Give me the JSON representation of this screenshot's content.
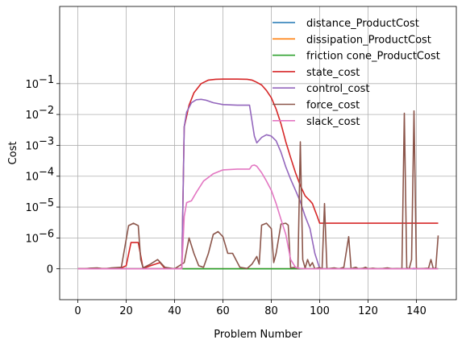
{
  "chart_data": {
    "type": "line",
    "xlabel": "Problem Number",
    "ylabel": "Cost",
    "xlim": [
      -7.5,
      156.5
    ],
    "yscale": "symlog",
    "linthresh": 1e-06,
    "ylim_decades": [
      -1,
      8.5
    ],
    "x_ticks": [
      0,
      20,
      40,
      60,
      80,
      100,
      120,
      140
    ],
    "x_tick_labels": [
      "0",
      "20",
      "40",
      "60",
      "80",
      "100",
      "120",
      "140"
    ],
    "y_ticks": [
      "0",
      "1e-6",
      "1e-5",
      "1e-4",
      "1e-3",
      "1e-2",
      "1e-1"
    ],
    "y_tick_labels": [
      "0",
      "10",
      "10",
      "10",
      "10",
      "10",
      "10"
    ],
    "y_tick_exponents": [
      "",
      "−6",
      "−5",
      "−4",
      "−3",
      "−2",
      "−1"
    ],
    "grid": true,
    "legend_position": "top-right",
    "series": [
      {
        "name": "distance_ProductCost",
        "color": "#1f77b4",
        "points": [
          [
            0,
            0
          ],
          [
            149,
            0
          ]
        ]
      },
      {
        "name": "dissipation_ProductCost",
        "color": "#ff7f0e",
        "points": [
          [
            0,
            0
          ],
          [
            149,
            0
          ]
        ]
      },
      {
        "name": "friction cone_ProductCost",
        "color": "#2ca02c",
        "points": [
          [
            0,
            0
          ],
          [
            149,
            0
          ]
        ]
      },
      {
        "name": "state_cost",
        "color": "#d62728",
        "points": [
          [
            0,
            0
          ],
          [
            5,
            0
          ],
          [
            7,
            2e-08
          ],
          [
            10,
            1e-08
          ],
          [
            14,
            0
          ],
          [
            18,
            3e-08
          ],
          [
            20,
            1e-07
          ],
          [
            22,
            8.5e-07
          ],
          [
            25,
            8.5e-07
          ],
          [
            27,
            1e-08
          ],
          [
            30,
            1e-07
          ],
          [
            34,
            2e-07
          ],
          [
            36,
            1e-08
          ],
          [
            40,
            0
          ],
          [
            43,
            1e-08
          ],
          [
            44,
            0.004
          ],
          [
            46,
            0.02
          ],
          [
            48,
            0.05
          ],
          [
            51,
            0.1
          ],
          [
            54,
            0.13
          ],
          [
            57,
            0.138
          ],
          [
            60,
            0.14
          ],
          [
            66,
            0.14
          ],
          [
            70,
            0.138
          ],
          [
            72,
            0.13
          ],
          [
            74,
            0.11
          ],
          [
            76,
            0.09
          ],
          [
            78,
            0.06
          ],
          [
            80,
            0.035
          ],
          [
            82,
            0.015
          ],
          [
            84,
            0.005
          ],
          [
            86,
            0.0013
          ],
          [
            88,
            0.0004
          ],
          [
            90,
            0.00013
          ],
          [
            92,
            5e-05
          ],
          [
            94,
            2.3e-05
          ],
          [
            96,
            1.6e-05
          ],
          [
            97,
            1.3e-05
          ],
          [
            98,
            8e-06
          ],
          [
            99,
            5e-06
          ],
          [
            100,
            3e-06
          ],
          [
            149,
            3e-06
          ]
        ]
      },
      {
        "name": "control_cost",
        "color": "#9467bd",
        "points": [
          [
            0,
            0
          ],
          [
            43,
            0
          ],
          [
            44,
            0.004
          ],
          [
            45,
            0.012
          ],
          [
            47,
            0.024
          ],
          [
            49,
            0.03
          ],
          [
            51,
            0.031
          ],
          [
            53,
            0.029
          ],
          [
            56,
            0.024
          ],
          [
            60,
            0.021
          ],
          [
            66,
            0.02
          ],
          [
            71,
            0.02
          ],
          [
            73,
            0.002
          ],
          [
            74,
            0.0012
          ],
          [
            76,
            0.0018
          ],
          [
            78,
            0.0022
          ],
          [
            80,
            0.002
          ],
          [
            82,
            0.0014
          ],
          [
            84,
            0.0006
          ],
          [
            86,
            0.0002
          ],
          [
            88,
            8e-05
          ],
          [
            90,
            3.5e-05
          ],
          [
            92,
            1.5e-05
          ],
          [
            94,
            5e-06
          ],
          [
            96,
            2e-06
          ],
          [
            98,
            5e-07
          ],
          [
            100,
            1e-08
          ],
          [
            101,
            0
          ],
          [
            149,
            0
          ]
        ]
      },
      {
        "name": "force_cost",
        "color": "#8c564b",
        "points": [
          [
            0,
            0
          ],
          [
            3,
            0
          ],
          [
            5,
            2e-08
          ],
          [
            8,
            3e-08
          ],
          [
            11,
            0
          ],
          [
            14,
            3e-08
          ],
          [
            18,
            5e-08
          ],
          [
            21,
            2.5e-06
          ],
          [
            23,
            3e-06
          ],
          [
            25,
            2.5e-06
          ],
          [
            26,
            3e-07
          ],
          [
            27,
            3e-08
          ],
          [
            30,
            1.5e-07
          ],
          [
            33,
            3e-07
          ],
          [
            36,
            5e-08
          ],
          [
            40,
            0
          ],
          [
            44,
            2e-07
          ],
          [
            46,
            1e-06
          ],
          [
            48,
            5e-07
          ],
          [
            50,
            1e-07
          ],
          [
            52,
            5e-08
          ],
          [
            54,
            5e-07
          ],
          [
            56,
            1.3e-06
          ],
          [
            58,
            1.6e-06
          ],
          [
            60,
            1.1e-06
          ],
          [
            62,
            5e-07
          ],
          [
            64,
            5e-07
          ],
          [
            67,
            5e-08
          ],
          [
            70,
            1e-08
          ],
          [
            72,
            1.5e-07
          ],
          [
            74,
            4e-07
          ],
          [
            75,
            1.5e-07
          ],
          [
            76,
            2.6e-06
          ],
          [
            78,
            3e-06
          ],
          [
            80,
            2e-06
          ],
          [
            81,
            2e-07
          ],
          [
            82,
            5e-07
          ],
          [
            84,
            2.8e-06
          ],
          [
            86,
            3e-06
          ],
          [
            87,
            2.6e-06
          ],
          [
            88,
            3e-08
          ],
          [
            90,
            5e-08
          ],
          [
            91,
            0
          ],
          [
            92,
            0.0013
          ],
          [
            93,
            3e-07
          ],
          [
            94,
            2e-08
          ],
          [
            95,
            3e-07
          ],
          [
            96,
            8e-08
          ],
          [
            97,
            2e-07
          ],
          [
            98,
            0
          ],
          [
            100,
            4e-08
          ],
          [
            101,
            0
          ],
          [
            102,
            1.3e-05
          ],
          [
            103,
            0
          ],
          [
            106,
            3e-08
          ],
          [
            108,
            0
          ],
          [
            110,
            5e-08
          ],
          [
            112,
            1.1e-06
          ],
          [
            113,
            0
          ],
          [
            114,
            3e-08
          ],
          [
            115,
            5e-08
          ],
          [
            116,
            0
          ],
          [
            117,
            1e-08
          ],
          [
            118,
            2e-08
          ],
          [
            119,
            5e-08
          ],
          [
            120,
            0
          ],
          [
            122,
            2e-08
          ],
          [
            124,
            0
          ],
          [
            126,
            1e-08
          ],
          [
            128,
            3e-08
          ],
          [
            130,
            0
          ],
          [
            132,
            1e-08
          ],
          [
            134,
            0
          ],
          [
            135,
            0.011
          ],
          [
            136,
            3e-08
          ],
          [
            137,
            0
          ],
          [
            138,
            3e-07
          ],
          [
            139,
            0.013
          ],
          [
            140,
            1e-08
          ],
          [
            141,
            0
          ],
          [
            145,
            2e-08
          ],
          [
            146,
            3e-07
          ],
          [
            147,
            0
          ],
          [
            148,
            3e-08
          ],
          [
            149,
            1.2e-06
          ]
        ]
      },
      {
        "name": "slack_cost",
        "color": "#e377c2",
        "points": [
          [
            0,
            0
          ],
          [
            43,
            0
          ],
          [
            44,
            5e-06
          ],
          [
            45,
            1.4e-05
          ],
          [
            47,
            1.6e-05
          ],
          [
            49,
            3e-05
          ],
          [
            52,
            7e-05
          ],
          [
            56,
            0.00012
          ],
          [
            60,
            0.00016
          ],
          [
            66,
            0.00017
          ],
          [
            71,
            0.00017
          ],
          [
            72,
            0.00022
          ],
          [
            73,
            0.00023
          ],
          [
            74,
            0.00021
          ],
          [
            76,
            0.00013
          ],
          [
            78,
            7e-05
          ],
          [
            80,
            3.5e-05
          ],
          [
            82,
            1.3e-05
          ],
          [
            84,
            4e-06
          ],
          [
            86,
            1.3e-06
          ],
          [
            88,
            3e-07
          ],
          [
            90,
            5e-08
          ],
          [
            92,
            1e-08
          ],
          [
            94,
            0
          ],
          [
            138,
            0
          ],
          [
            139,
            2e-08
          ],
          [
            140,
            0
          ],
          [
            149,
            0
          ]
        ]
      }
    ]
  }
}
